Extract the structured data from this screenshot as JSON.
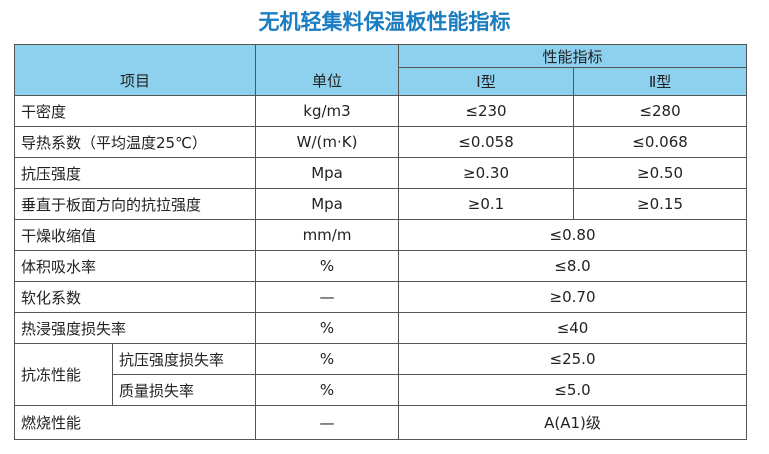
{
  "title": "无机轻集料保温板性能指标",
  "header": {
    "item": "项目",
    "unit": "单位",
    "indicators": "性能指标",
    "type1": "Ⅰ型",
    "type2": "Ⅱ型"
  },
  "rows": [
    {
      "item": "干密度",
      "unit": "kg/m3",
      "values": [
        "≤230",
        "≤280"
      ]
    },
    {
      "item": "导热系数（平均温度25℃）",
      "unit": "W/(m·K)",
      "values": [
        "≤0.058",
        "≤0.068"
      ]
    },
    {
      "item": "抗压强度",
      "unit": "Mpa",
      "values": [
        "≥0.30",
        "≥0.50"
      ]
    },
    {
      "item": "垂直于板面方向的抗拉强度",
      "unit": "Mpa",
      "values": [
        "≥0.1",
        "≥0.15"
      ]
    },
    {
      "item": "干燥收缩值",
      "unit": "mm/m",
      "values": [
        "≤0.80"
      ]
    },
    {
      "item": "体积吸水率",
      "unit": "%",
      "values": [
        "≤8.0"
      ]
    },
    {
      "item": "软化系数",
      "unit": "—",
      "values": [
        "≥0.70"
      ]
    },
    {
      "item": "热浸强度损失率",
      "unit": "%",
      "values": [
        "≤40"
      ]
    },
    {
      "item": "抗冻性能",
      "subrows": [
        {
          "item": "抗压强度损失率",
          "unit": "%",
          "values": [
            "≤25.0"
          ]
        },
        {
          "item": "质量损失率",
          "unit": "%",
          "values": [
            "≤5.0"
          ]
        }
      ]
    },
    {
      "item": "燃烧性能",
      "unit": "—",
      "values": [
        "A(A1)级"
      ]
    }
  ]
}
